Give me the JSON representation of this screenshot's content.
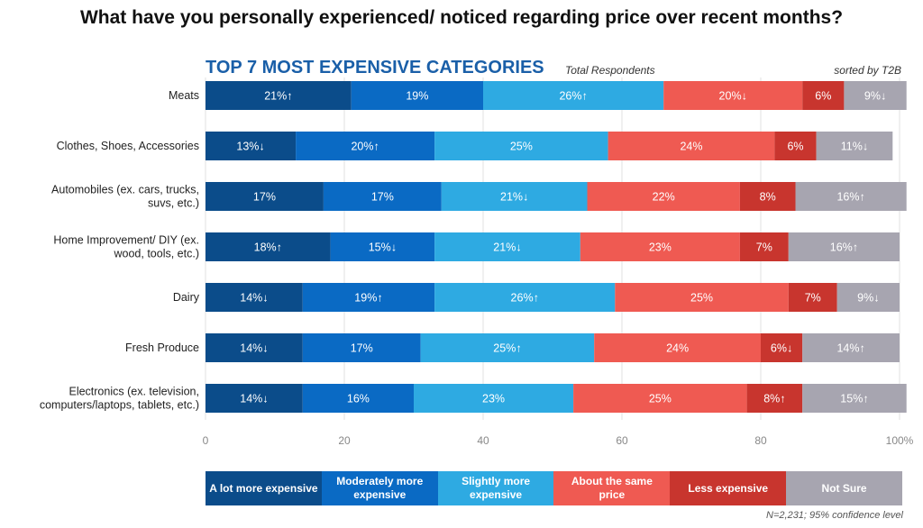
{
  "title": "What have you personally experienced/ noticed regarding price over recent months?",
  "subtitle": "TOP 7 MOST EXPENSIVE CATEGORIES",
  "respondents_note": "Total Respondents",
  "sort_note": "sorted by T2B",
  "footnote": "N=2,231; 95% confidence level",
  "colors": [
    "#0b4c8a",
    "#0a6ac4",
    "#2eaae2",
    "#ef5a52",
    "#c8352e",
    "#a7a5b0"
  ],
  "legend": [
    "A lot more expensive",
    "Moderately more expensive",
    "Slightly more expensive",
    "About the same price",
    "Less expensive",
    "Not Sure"
  ],
  "chart_data": {
    "type": "bar",
    "orientation": "horizontal",
    "stacked": true,
    "xlim": [
      0,
      100
    ],
    "xticks": [
      "0",
      "20",
      "40",
      "60",
      "80",
      "100%"
    ],
    "grid": true,
    "legend_position": "bottom",
    "categories": [
      "Meats",
      "Clothes, Shoes, Accessories",
      "Automobiles (ex. cars, trucks, suvs, etc.)",
      "Home Improvement/ DIY (ex. wood, tools, etc.)",
      "Dairy",
      "Fresh Produce",
      "Electronics (ex. television, computers/laptops, tablets, etc.)"
    ],
    "category_lines": [
      [
        "Meats"
      ],
      [
        "Clothes, Shoes, Accessories"
      ],
      [
        "Automobiles (ex. cars, trucks,",
        "suvs, etc.)"
      ],
      [
        "Home Improvement/ DIY (ex.",
        "wood, tools, etc.)"
      ],
      [
        "Dairy"
      ],
      [
        "Fresh Produce"
      ],
      [
        "Electronics (ex. television,",
        "computers/laptops, tablets, etc.)"
      ]
    ],
    "series": [
      {
        "name": "A lot more expensive",
        "values": [
          21,
          13,
          17,
          18,
          14,
          14,
          14
        ],
        "labels": [
          "21%↑",
          "13%↓",
          "17%",
          "18%↑",
          "14%↓",
          "14%↓",
          "14%↓"
        ]
      },
      {
        "name": "Moderately more expensive",
        "values": [
          19,
          20,
          17,
          15,
          19,
          17,
          16
        ],
        "labels": [
          "19%",
          "20%↑",
          "17%",
          "15%↓",
          "19%↑",
          "17%",
          "16%"
        ]
      },
      {
        "name": "Slightly more expensive",
        "values": [
          26,
          25,
          21,
          21,
          26,
          25,
          23
        ],
        "labels": [
          "26%↑",
          "25%",
          "21%↓",
          "21%↓",
          "26%↑",
          "25%↑",
          "23%"
        ]
      },
      {
        "name": "About the same price",
        "values": [
          20,
          24,
          22,
          23,
          25,
          24,
          25
        ],
        "labels": [
          "20%↓",
          "24%",
          "22%",
          "23%",
          "25%",
          "24%",
          "25%"
        ]
      },
      {
        "name": "Less expensive",
        "values": [
          6,
          6,
          8,
          7,
          7,
          6,
          8
        ],
        "labels": [
          "6%",
          "6%",
          "8%",
          "7%",
          "7%",
          "6%↓",
          "8%↑"
        ]
      },
      {
        "name": "Not Sure",
        "values": [
          9,
          11,
          16,
          16,
          9,
          14,
          15
        ],
        "labels": [
          "9%↓",
          "11%↓",
          "16%↑",
          "16%↑",
          "9%↓",
          "14%↑",
          "15%↑"
        ]
      }
    ]
  }
}
